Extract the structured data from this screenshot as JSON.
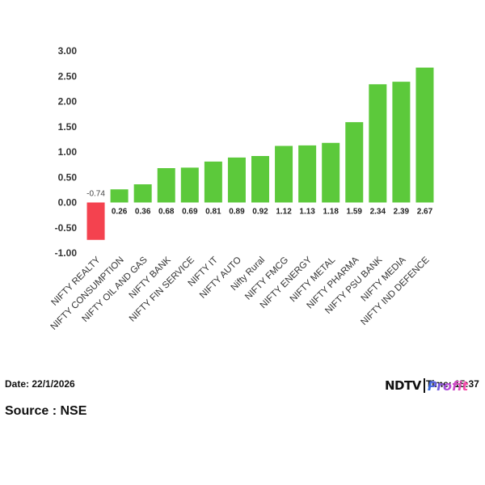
{
  "chart_data": {
    "type": "bar",
    "categories": [
      "NIFTY REALTY",
      "NIFTY CONSUMPTION",
      "NIFTY OIL AND GAS",
      "NIFTY BANK",
      "NIFTY FIN SERVICE",
      "NIFTY IT",
      "NIFTY AUTO",
      "Nifty Rural",
      "NIFTY FMCG",
      "NIFTY ENERGY",
      "NIFTY METAL",
      "NIFTY PHARMA",
      "NIFTY PSU BANK",
      "NIFTY MEDIA",
      "NIFTY IND DEFENCE"
    ],
    "values": [
      -0.74,
      0.26,
      0.36,
      0.68,
      0.69,
      0.81,
      0.89,
      0.92,
      1.12,
      1.13,
      1.18,
      1.59,
      2.34,
      2.39,
      2.67
    ],
    "value_labels": [
      "-0.74",
      "0.26",
      "0.36",
      "0.68",
      "0.69",
      "0.81",
      "0.89",
      "0.92",
      "1.12",
      "1.13",
      "1.18",
      "1.59",
      "2.34",
      "2.39",
      "2.67"
    ],
    "yticks": [
      "3.00",
      "2.50",
      "2.00",
      "1.50",
      "1.00",
      "0.50",
      "0.00",
      "-0.50",
      "-1.00"
    ],
    "ylim": [
      -1.0,
      3.0
    ],
    "grid": false,
    "colors": {
      "positive": "#5cc93b",
      "negative": "#f4424f"
    }
  },
  "footer": {
    "date": "Date: 22/1/2026",
    "time": "Time: 15:37",
    "source": "Source : NSE",
    "logo_main": "NDTV",
    "logo_sub": "Profit"
  }
}
